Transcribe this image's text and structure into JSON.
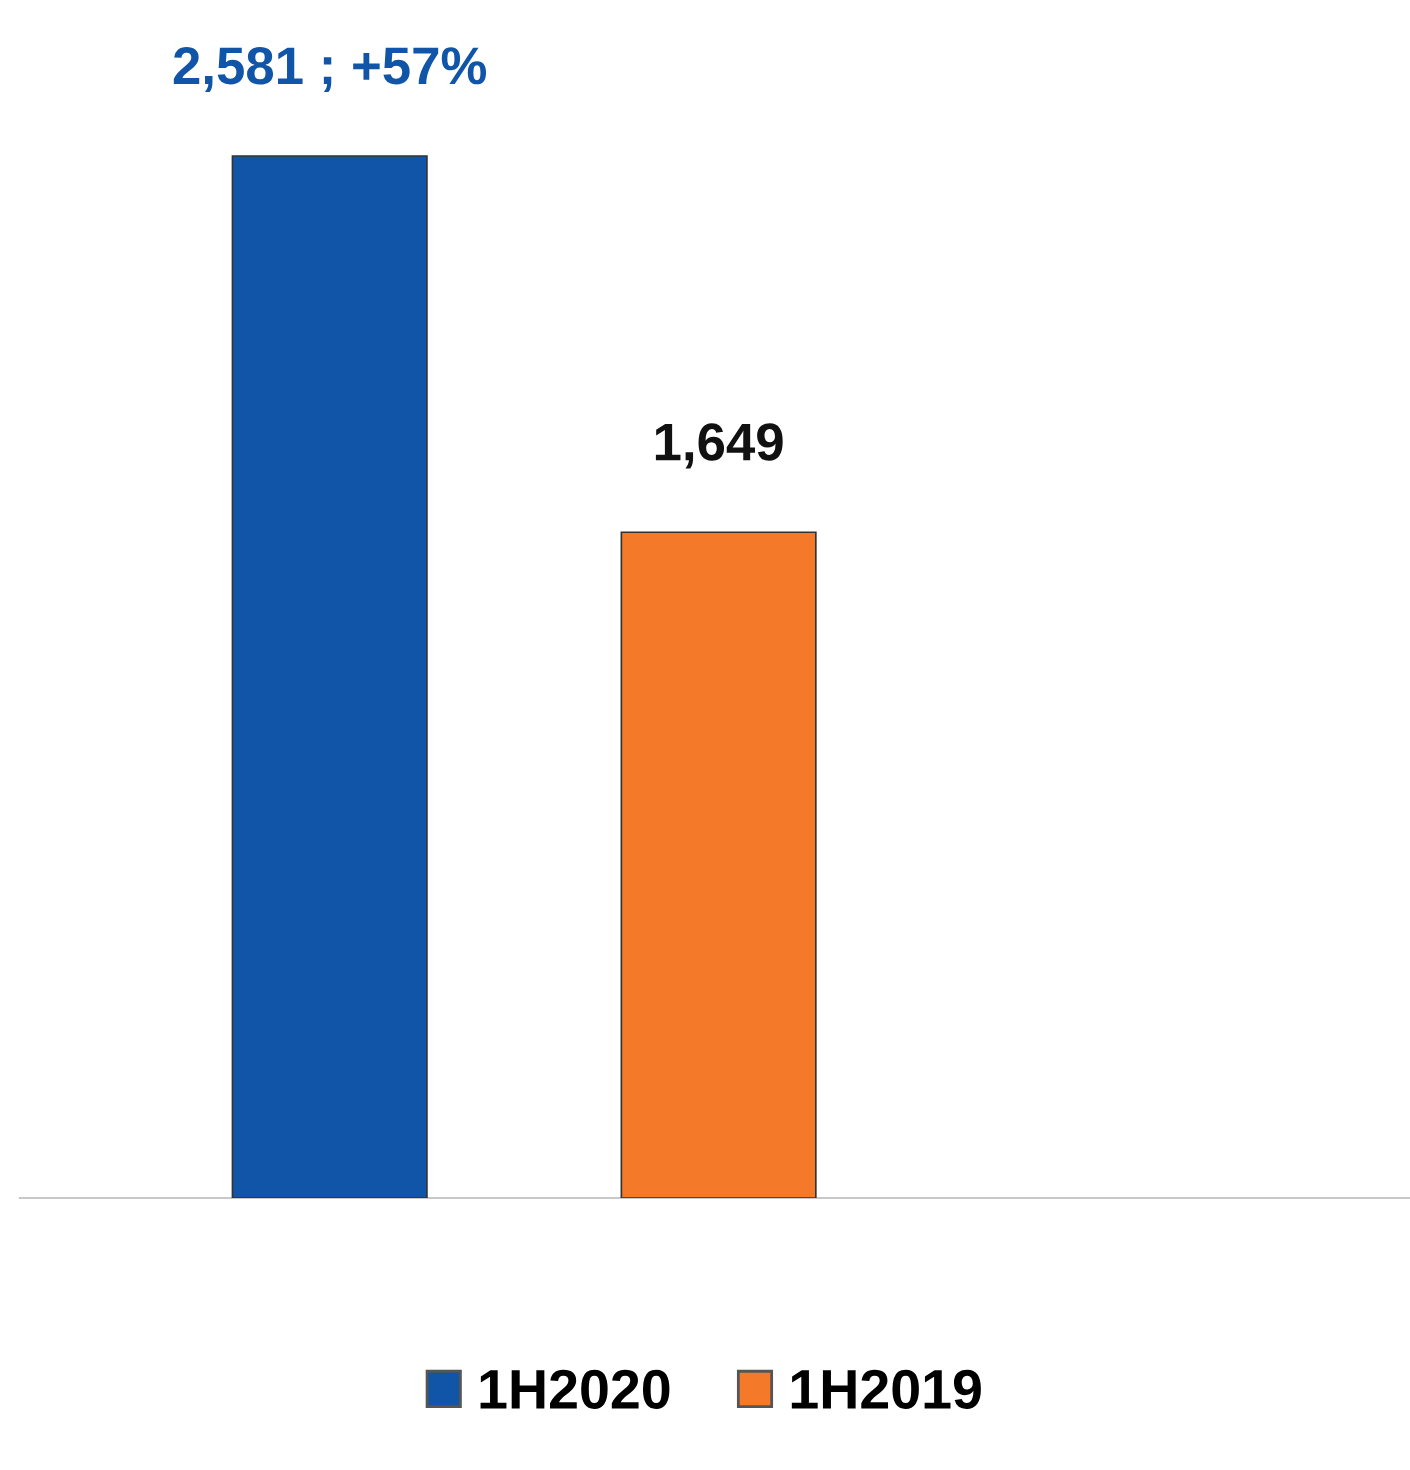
{
  "chart_data": {
    "type": "bar",
    "categories": [
      null,
      null
    ],
    "values": [
      2581,
      1649
    ],
    "colors": [
      "#1155a8",
      "#f47a2a"
    ],
    "value_labels": [
      "2,581 ; +57%",
      "1,649"
    ],
    "annotations": [
      "1H2020",
      "1H2019"
    ],
    "grid": false
  }
}
